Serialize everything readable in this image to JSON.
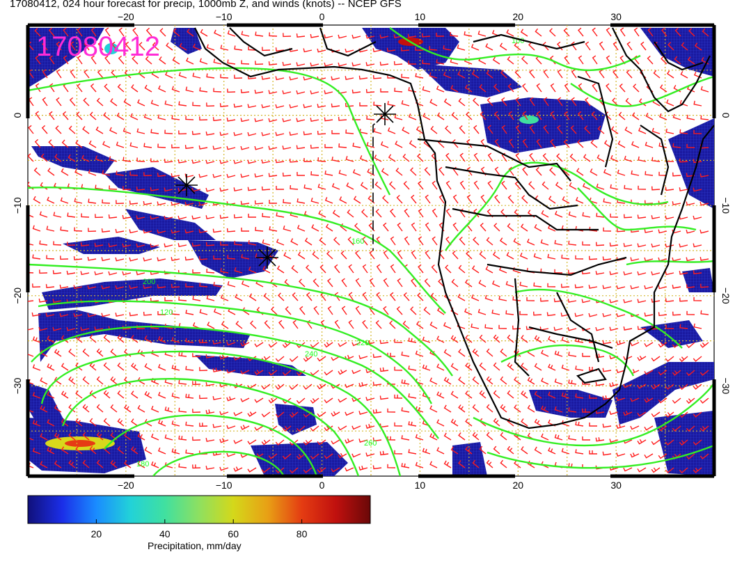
{
  "title": "17080412, 024 hour forecast for precip, 1000mb Z, and winds (knots) -- NCEP GFS",
  "stamp": "17080412",
  "map": {
    "lon_range": [
      -30,
      40
    ],
    "lat_range": [
      -40,
      10
    ],
    "x_ticks": [
      "−20",
      "−10",
      "0",
      "10",
      "20",
      "30"
    ],
    "y_ticks": [
      "0",
      "−10",
      "−20",
      "−30"
    ],
    "contour_labels": [
      "120",
      "160",
      "200",
      "220",
      "240",
      "260",
      "180",
      "100"
    ],
    "colors": {
      "contour": "#33ee22",
      "wind_barb": "#ff1a1a",
      "gridline": "#d4b62a",
      "coast": "#000000"
    }
  },
  "colorbar": {
    "caption": "Precipitation, mm/day",
    "ticks": [
      "20",
      "40",
      "60",
      "80"
    ],
    "tick_values": [
      20,
      40,
      60,
      80
    ],
    "range": [
      0,
      100
    ],
    "colors": [
      "#10107a",
      "#1b2ee8",
      "#1a8cff",
      "#22d2d8",
      "#40e0a0",
      "#8ee060",
      "#d4d81a",
      "#e8a015",
      "#e43c12",
      "#c0100e",
      "#6a0808"
    ]
  }
}
